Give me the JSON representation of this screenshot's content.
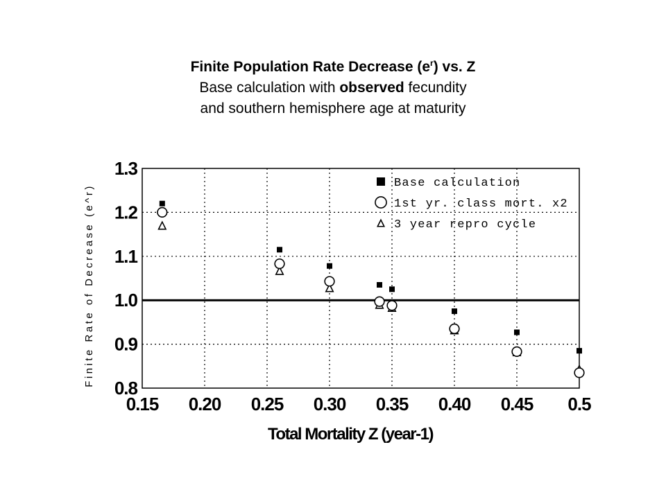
{
  "title": {
    "line1_pre": "Finite Population Rate Decrease (e",
    "line1_sup": "r",
    "line1_post": ") vs. Z",
    "line2_pre": "Base calculation with ",
    "line2_bold": "observed",
    "line2_post": " fecundity",
    "line3": "and southern hemisphere age at maturity"
  },
  "chart_data": {
    "type": "scatter",
    "xlabel": "Total Mortality Z (year-1)",
    "ylabel": "Finite Rate of Decrease (e^r)",
    "xlim": [
      0.15,
      0.5
    ],
    "ylim": [
      0.8,
      1.3
    ],
    "x_ticks": [
      0.15,
      0.2,
      0.25,
      0.3,
      0.35,
      0.4,
      0.45,
      0.5
    ],
    "x_tick_labels": [
      "0.15",
      "0.20",
      "0.25",
      "0.30",
      "0.35",
      "0.40",
      "0.45",
      "0.5"
    ],
    "y_ticks": [
      0.8,
      0.9,
      1.0,
      1.1,
      1.2,
      1.3
    ],
    "y_tick_labels": [
      "0.8",
      "0.9",
      "1.0",
      "1.1",
      "1.2",
      "1.3"
    ],
    "grid": true,
    "reference_line": 1.0,
    "legend_position": "top-right",
    "series": [
      {
        "name": "Base calculation",
        "marker": "square",
        "x": [
          0.166,
          0.26,
          0.3,
          0.34,
          0.35,
          0.4,
          0.45,
          0.5
        ],
        "y": [
          1.22,
          1.115,
          1.078,
          1.035,
          1.025,
          0.975,
          0.927,
          0.885
        ]
      },
      {
        "name": "1st yr. class mort. x2",
        "marker": "circle",
        "x": [
          0.166,
          0.26,
          0.3,
          0.34,
          0.35,
          0.4,
          0.45,
          0.5
        ],
        "y": [
          1.2,
          1.083,
          1.043,
          0.997,
          0.988,
          0.935,
          0.883,
          0.835
        ]
      },
      {
        "name": "3 year repro cycle",
        "marker": "triangle",
        "x": [
          0.166,
          0.26,
          0.3,
          0.34,
          0.35,
          0.4,
          0.45,
          0.5
        ],
        "y": [
          1.17,
          1.067,
          1.028,
          0.99,
          0.983,
          0.932,
          0.882,
          0.843
        ]
      }
    ]
  }
}
